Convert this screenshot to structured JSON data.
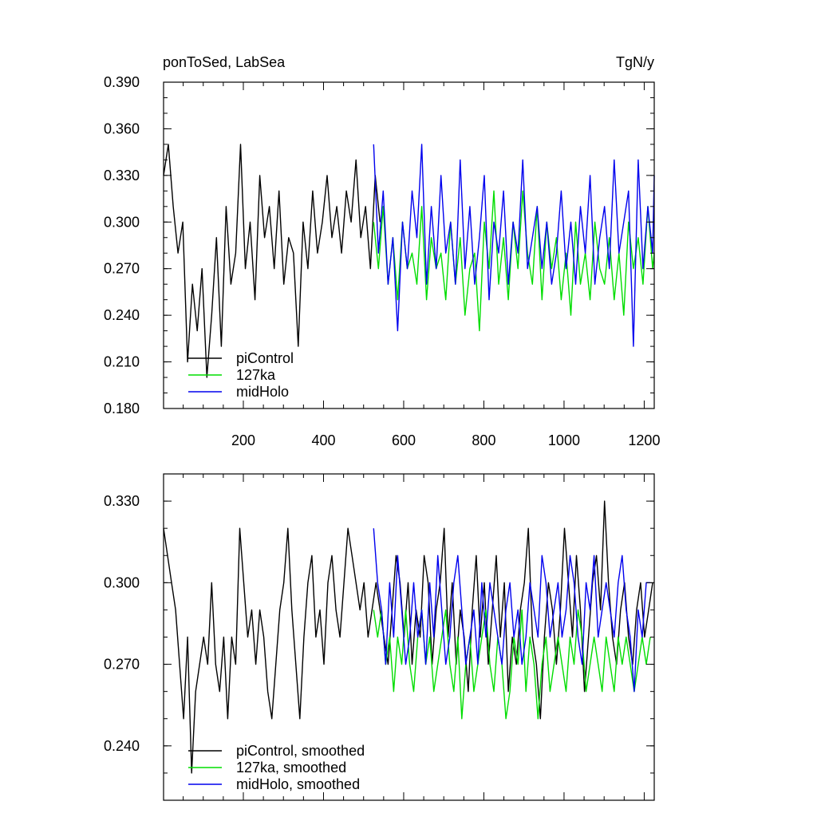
{
  "chart_data": [
    {
      "type": "line",
      "title_left": "ponToSed, LabSea",
      "title_right": "TgN/y",
      "xlim": [
        1,
        1225
      ],
      "ylim": [
        0.18,
        0.39
      ],
      "xticks": [
        200,
        400,
        600,
        800,
        1000,
        1200
      ],
      "xtick_labels": [
        "200",
        "400",
        "600",
        "800",
        "1000",
        "1200"
      ],
      "yticks": [
        0.18,
        0.21,
        0.24,
        0.27,
        0.3,
        0.33,
        0.36,
        0.39
      ],
      "ytick_labels": [
        "0.180",
        "0.210",
        "0.240",
        "0.270",
        "0.300",
        "0.330",
        "0.360",
        "0.390"
      ],
      "legend_position": "bottom-left",
      "series": [
        {
          "name": "piControl",
          "color": "#000000",
          "x_start": 1,
          "x_step": 12,
          "values": [
            0.33,
            0.35,
            0.31,
            0.28,
            0.3,
            0.21,
            0.26,
            0.23,
            0.27,
            0.2,
            0.24,
            0.29,
            0.22,
            0.31,
            0.26,
            0.28,
            0.35,
            0.27,
            0.3,
            0.25,
            0.33,
            0.29,
            0.31,
            0.27,
            0.32,
            0.26,
            0.29,
            0.28,
            0.22,
            0.3,
            0.27,
            0.32,
            0.28,
            0.3,
            0.33,
            0.29,
            0.31,
            0.28,
            0.32,
            0.3,
            0.34,
            0.29,
            0.31,
            0.27,
            0.33,
            0.3
          ]
        },
        {
          "name": "127ka",
          "color": "#00dd00",
          "x_start": 525,
          "x_step": 12,
          "values": [
            0.3,
            0.27,
            0.31,
            0.26,
            0.29,
            0.25,
            0.3,
            0.27,
            0.28,
            0.26,
            0.31,
            0.25,
            0.29,
            0.27,
            0.28,
            0.25,
            0.3,
            0.26,
            0.29,
            0.24,
            0.27,
            0.28,
            0.23,
            0.3,
            0.27,
            0.32,
            0.26,
            0.29,
            0.25,
            0.3,
            0.27,
            0.32,
            0.28,
            0.26,
            0.31,
            0.25,
            0.3,
            0.27,
            0.29,
            0.25,
            0.28,
            0.24,
            0.3,
            0.26,
            0.28,
            0.25,
            0.3,
            0.27,
            0.26,
            0.29,
            0.25,
            0.28,
            0.24,
            0.3,
            0.27,
            0.29,
            0.26,
            0.31,
            0.27,
            0.28
          ]
        },
        {
          "name": "midHolo",
          "color": "#0000ee",
          "x_start": 525,
          "x_step": 12,
          "values": [
            0.35,
            0.28,
            0.32,
            0.26,
            0.29,
            0.23,
            0.3,
            0.27,
            0.32,
            0.29,
            0.35,
            0.26,
            0.31,
            0.27,
            0.33,
            0.28,
            0.3,
            0.26,
            0.34,
            0.27,
            0.31,
            0.26,
            0.29,
            0.33,
            0.25,
            0.3,
            0.28,
            0.32,
            0.26,
            0.3,
            0.28,
            0.34,
            0.27,
            0.29,
            0.31,
            0.27,
            0.3,
            0.26,
            0.28,
            0.32,
            0.27,
            0.3,
            0.26,
            0.31,
            0.28,
            0.33,
            0.26,
            0.29,
            0.31,
            0.27,
            0.34,
            0.28,
            0.3,
            0.32,
            0.22,
            0.34,
            0.27,
            0.31,
            0.28,
            0.33
          ]
        }
      ]
    },
    {
      "type": "line",
      "xlim": [
        1,
        1225
      ],
      "ylim": [
        0.22,
        0.34
      ],
      "yticks": [
        0.24,
        0.27,
        0.3,
        0.33
      ],
      "ytick_labels": [
        "0.240",
        "0.270",
        "0.300",
        "0.330"
      ],
      "xticks": [
        200,
        400,
        600,
        800,
        1000,
        1200
      ],
      "legend_position": "bottom-left",
      "series": [
        {
          "name": "piControl, smoothed",
          "color": "#000000",
          "x_start": 1,
          "x_step": 10,
          "values": [
            0.32,
            0.31,
            0.3,
            0.29,
            0.27,
            0.25,
            0.28,
            0.23,
            0.26,
            0.27,
            0.28,
            0.27,
            0.3,
            0.27,
            0.26,
            0.28,
            0.25,
            0.28,
            0.27,
            0.32,
            0.3,
            0.28,
            0.29,
            0.27,
            0.29,
            0.28,
            0.26,
            0.25,
            0.27,
            0.29,
            0.3,
            0.32,
            0.29,
            0.27,
            0.25,
            0.28,
            0.3,
            0.31,
            0.28,
            0.29,
            0.27,
            0.3,
            0.31,
            0.29,
            0.28,
            0.3,
            0.32,
            0.31,
            0.3,
            0.29,
            0.3,
            0.28,
            0.29,
            0.3,
            0.29,
            0.28,
            0.27,
            0.29,
            0.31,
            0.3,
            0.28,
            0.3,
            0.27,
            0.29,
            0.28,
            0.31,
            0.3,
            0.27,
            0.29,
            0.3,
            0.32,
            0.28,
            0.3,
            0.27,
            0.29,
            0.28,
            0.26,
            0.29,
            0.31,
            0.28,
            0.3,
            0.27,
            0.29,
            0.31,
            0.28,
            0.3,
            0.26,
            0.28,
            0.27,
            0.29,
            0.3,
            0.32,
            0.28,
            0.27,
            0.25,
            0.28,
            0.3,
            0.29,
            0.27,
            0.29,
            0.32,
            0.3,
            0.28,
            0.31,
            0.29,
            0.26,
            0.28,
            0.3,
            0.31,
            0.29,
            0.33,
            0.3,
            0.28,
            0.27,
            0.29,
            0.3,
            0.28,
            0.27,
            0.29,
            0.3,
            0.28,
            0.29,
            0.3
          ]
        },
        {
          "name": "127ka, smoothed",
          "color": "#00dd00",
          "x_start": 525,
          "x_step": 10,
          "values": [
            0.29,
            0.28,
            0.29,
            0.27,
            0.28,
            0.26,
            0.28,
            0.27,
            0.29,
            0.27,
            0.26,
            0.28,
            0.29,
            0.27,
            0.28,
            0.26,
            0.27,
            0.28,
            0.29,
            0.27,
            0.26,
            0.28,
            0.25,
            0.27,
            0.28,
            0.26,
            0.27,
            0.28,
            0.29,
            0.27,
            0.26,
            0.28,
            0.27,
            0.25,
            0.26,
            0.28,
            0.27,
            0.29,
            0.26,
            0.28,
            0.27,
            0.25,
            0.27,
            0.28,
            0.26,
            0.27,
            0.28,
            0.27,
            0.26,
            0.28,
            0.27,
            0.29,
            0.28,
            0.26,
            0.27,
            0.28,
            0.27,
            0.26,
            0.28,
            0.27,
            0.26,
            0.28,
            0.27,
            0.28,
            0.27,
            0.26,
            0.27,
            0.28,
            0.27,
            0.28
          ]
        },
        {
          "name": "midHolo, smoothed",
          "color": "#0000ee",
          "x_start": 525,
          "x_step": 10,
          "values": [
            0.32,
            0.3,
            0.29,
            0.27,
            0.3,
            0.28,
            0.31,
            0.29,
            0.27,
            0.28,
            0.3,
            0.28,
            0.29,
            0.27,
            0.3,
            0.28,
            0.31,
            0.29,
            0.27,
            0.28,
            0.3,
            0.31,
            0.29,
            0.27,
            0.28,
            0.29,
            0.27,
            0.3,
            0.28,
            0.3,
            0.29,
            0.28,
            0.27,
            0.29,
            0.3,
            0.28,
            0.29,
            0.27,
            0.28,
            0.3,
            0.29,
            0.28,
            0.31,
            0.3,
            0.28,
            0.29,
            0.3,
            0.28,
            0.29,
            0.31,
            0.3,
            0.28,
            0.27,
            0.3,
            0.29,
            0.31,
            0.28,
            0.29,
            0.3,
            0.29,
            0.28,
            0.3,
            0.31,
            0.29,
            0.28,
            0.26,
            0.29,
            0.28,
            0.3,
            0.3
          ]
        }
      ]
    }
  ]
}
